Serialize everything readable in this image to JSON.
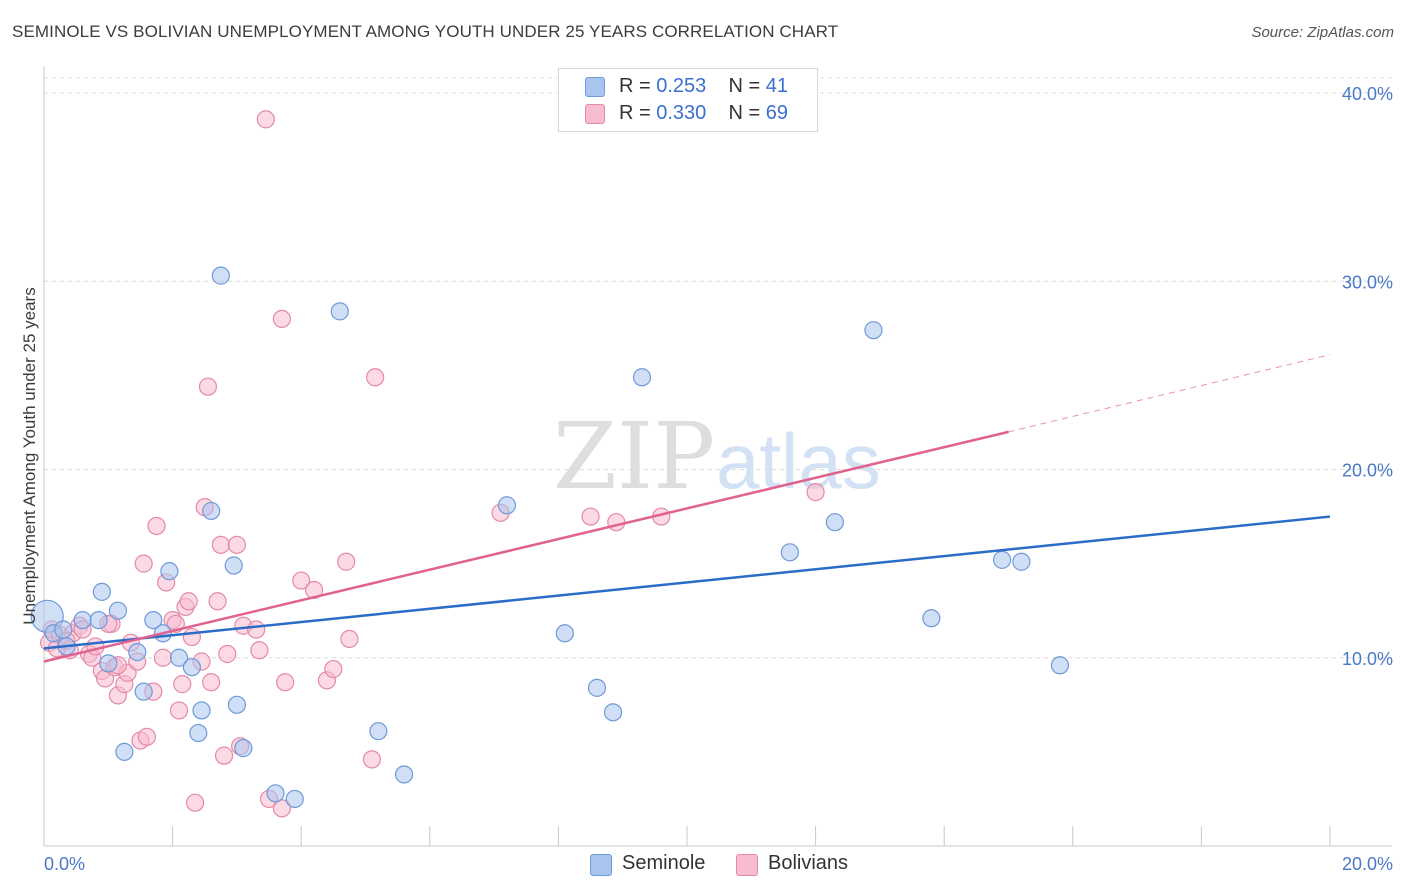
{
  "header": {
    "title": "SEMINOLE VS BOLIVIAN UNEMPLOYMENT AMONG YOUTH UNDER 25 YEARS CORRELATION CHART",
    "source": "Source: ZipAtlas.com"
  },
  "watermark": {
    "zip": "ZIP",
    "atlas": "atlas"
  },
  "legend": {
    "rows": [
      {
        "r_label": "R =",
        "r_value": "0.253",
        "n_label": "N =",
        "n_value": "41"
      },
      {
        "r_label": "R =",
        "r_value": "0.330",
        "n_label": "N =",
        "n_value": "69"
      }
    ]
  },
  "bottom_legend": {
    "seminole": "Seminole",
    "bolivians": "Bolivians"
  },
  "colors": {
    "seminole_fill": "#a9c4ee",
    "seminole_stroke": "#6f9ad8",
    "seminole_line": "#2b6cc9",
    "bolivian_fill": "#f7bcd0",
    "bolivian_stroke": "#e489a8",
    "bolivian_line": "#e0628f",
    "tick_text": "#4a78c8",
    "grid": "#dcdcdc"
  },
  "chart_data": {
    "type": "scatter",
    "title": "SEMINOLE VS BOLIVIAN UNEMPLOYMENT AMONG YOUTH UNDER 25 YEARS CORRELATION CHART",
    "xlabel": "",
    "ylabel": "Unemployment Among Youth under 25 years",
    "xlim": [
      0,
      20
    ],
    "ylim": [
      0,
      40
    ],
    "x_tick_labels": [
      "0.0%",
      "20.0%"
    ],
    "y_ticks": [
      10,
      20,
      30,
      40
    ],
    "y_tick_labels": [
      "10.0%",
      "20.0%",
      "30.0%",
      "40.0%"
    ],
    "series": [
      {
        "name": "Seminole",
        "R": 0.253,
        "N": 41,
        "trend": {
          "x0": 0,
          "y0": 10.5,
          "x1": 20,
          "y1": 17.5
        },
        "points": [
          [
            0.05,
            12.2
          ],
          [
            0.15,
            11.3
          ],
          [
            0.3,
            11.5
          ],
          [
            0.35,
            10.6
          ],
          [
            0.6,
            12.0
          ],
          [
            0.85,
            12.0
          ],
          [
            0.9,
            13.5
          ],
          [
            1.0,
            9.7
          ],
          [
            1.15,
            12.5
          ],
          [
            1.45,
            10.3
          ],
          [
            1.55,
            8.2
          ],
          [
            1.7,
            12.0
          ],
          [
            1.85,
            11.3
          ],
          [
            1.95,
            14.6
          ],
          [
            2.1,
            10.0
          ],
          [
            2.3,
            9.5
          ],
          [
            2.4,
            6.0
          ],
          [
            2.45,
            7.2
          ],
          [
            2.6,
            17.8
          ],
          [
            2.75,
            30.3
          ],
          [
            2.95,
            14.9
          ],
          [
            3.0,
            7.5
          ],
          [
            3.1,
            5.2
          ],
          [
            3.6,
            2.8
          ],
          [
            3.9,
            2.5
          ],
          [
            4.6,
            28.4
          ],
          [
            5.2,
            6.1
          ],
          [
            5.6,
            3.8
          ],
          [
            7.2,
            18.1
          ],
          [
            8.1,
            11.3
          ],
          [
            8.6,
            8.4
          ],
          [
            8.85,
            7.1
          ],
          [
            9.3,
            24.9
          ],
          [
            1.25,
            5.0
          ],
          [
            11.6,
            15.6
          ],
          [
            12.3,
            17.2
          ],
          [
            12.9,
            27.4
          ],
          [
            13.8,
            12.1
          ],
          [
            14.9,
            15.2
          ],
          [
            15.2,
            15.1
          ],
          [
            15.8,
            9.6
          ]
        ]
      },
      {
        "name": "Bolivians",
        "R": 0.33,
        "N": 69,
        "trend": {
          "x0": 0,
          "y0": 9.8,
          "x1": 15,
          "y1": 22.0
        },
        "trend_dashed": {
          "x0": 15,
          "y0": 22.0,
          "x1": 20,
          "y1": 26.1
        },
        "points": [
          [
            0.08,
            10.8
          ],
          [
            0.12,
            11.5
          ],
          [
            0.25,
            11.2
          ],
          [
            0.4,
            10.4
          ],
          [
            0.45,
            11.3
          ],
          [
            0.55,
            11.7
          ],
          [
            0.7,
            10.2
          ],
          [
            0.75,
            10.0
          ],
          [
            0.8,
            10.6
          ],
          [
            0.9,
            9.3
          ],
          [
            0.95,
            8.9
          ],
          [
            1.05,
            11.8
          ],
          [
            1.1,
            9.5
          ],
          [
            1.15,
            8.0
          ],
          [
            1.25,
            8.6
          ],
          [
            1.3,
            9.2
          ],
          [
            1.35,
            10.8
          ],
          [
            1.45,
            9.8
          ],
          [
            1.5,
            5.6
          ],
          [
            1.6,
            5.8
          ],
          [
            1.55,
            15.0
          ],
          [
            1.7,
            8.2
          ],
          [
            1.75,
            17.0
          ],
          [
            1.85,
            10.0
          ],
          [
            1.9,
            14.0
          ],
          [
            2.0,
            12.0
          ],
          [
            2.05,
            11.8
          ],
          [
            2.1,
            7.2
          ],
          [
            2.15,
            8.6
          ],
          [
            2.2,
            12.7
          ],
          [
            2.25,
            13.0
          ],
          [
            2.3,
            11.1
          ],
          [
            2.35,
            2.3
          ],
          [
            2.45,
            9.8
          ],
          [
            2.5,
            18.0
          ],
          [
            2.55,
            24.4
          ],
          [
            2.6,
            8.7
          ],
          [
            2.7,
            13.0
          ],
          [
            2.75,
            16.0
          ],
          [
            2.8,
            4.8
          ],
          [
            2.85,
            10.2
          ],
          [
            3.0,
            16.0
          ],
          [
            3.05,
            5.3
          ],
          [
            3.1,
            11.7
          ],
          [
            3.3,
            11.5
          ],
          [
            3.35,
            10.4
          ],
          [
            3.5,
            2.5
          ],
          [
            3.7,
            2.0
          ],
          [
            3.7,
            28.0
          ],
          [
            3.75,
            8.7
          ],
          [
            4.0,
            14.1
          ],
          [
            4.2,
            13.6
          ],
          [
            4.4,
            8.8
          ],
          [
            4.5,
            9.4
          ],
          [
            4.7,
            15.1
          ],
          [
            4.75,
            11.0
          ],
          [
            5.15,
            24.9
          ],
          [
            5.1,
            4.6
          ],
          [
            1.0,
            11.8
          ],
          [
            1.15,
            9.6
          ],
          [
            3.45,
            38.6
          ],
          [
            7.1,
            17.7
          ],
          [
            8.5,
            17.5
          ],
          [
            8.9,
            17.2
          ],
          [
            9.6,
            17.5
          ],
          [
            12.0,
            18.8
          ],
          [
            0.2,
            10.5
          ],
          [
            0.35,
            10.9
          ],
          [
            0.6,
            11.5
          ]
        ]
      }
    ]
  }
}
